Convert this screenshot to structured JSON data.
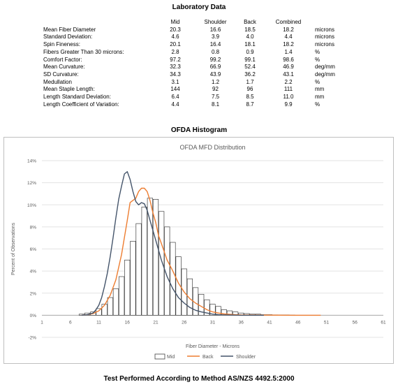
{
  "lab": {
    "title": "Laboratory Data",
    "columns": [
      "Mid",
      "Shoulder",
      "Back",
      "Combined"
    ],
    "rows": [
      {
        "label": "Mean Fiber Diameter",
        "values": [
          "20.3",
          "16.6",
          "18.5",
          "18.2"
        ],
        "unit": "microns"
      },
      {
        "label": "Standard Deviation:",
        "values": [
          "4.6",
          "3.9",
          "4.0",
          "4.4"
        ],
        "unit": "microns"
      },
      {
        "label": "Spin Fineness:",
        "values": [
          "20.1",
          "16.4",
          "18.1",
          "18.2"
        ],
        "unit": "microns"
      },
      {
        "label": "Fibers Greater Than 30 microns:",
        "values": [
          "2.8",
          "0.8",
          "0.9",
          "1.4"
        ],
        "unit": "%"
      },
      {
        "label": "Comfort Factor:",
        "values": [
          "97.2",
          "99.2",
          "99.1",
          "98.6"
        ],
        "unit": "%"
      },
      {
        "label": "Mean Curvature:",
        "values": [
          "32.3",
          "66.9",
          "52.4",
          "46.9"
        ],
        "unit": "deg/mm"
      },
      {
        "label": "SD Curvature:",
        "values": [
          "34.3",
          "43.9",
          "36.2",
          "43.1"
        ],
        "unit": "deg/mm"
      },
      {
        "label": "Medullation",
        "values": [
          "3.1",
          "1.2",
          "1.7",
          "2.2"
        ],
        "unit": "%"
      },
      {
        "label": "Mean Staple Length:",
        "values": [
          "144",
          "92",
          "96",
          "111"
        ],
        "unit": "mm"
      },
      {
        "label": "Length Standard Deviation:",
        "values": [
          "6.4",
          "7.5",
          "8.5",
          "11.0"
        ],
        "unit": "mm"
      },
      {
        "label": "Length Coefficient of Variation:",
        "values": [
          "4.4",
          "8.1",
          "8.7",
          "9.9"
        ],
        "unit": "%"
      }
    ]
  },
  "histogram_title": "OFDA Histogram",
  "footer": "Test Performed According to Method AS/NZS 4492.5:2000",
  "chart_data": {
    "type": "bar",
    "title": "OFDA MFD Distribution",
    "xlabel": "Fiber Diameter - Microns",
    "ylabel": "Percent of Observations",
    "xlim": [
      1,
      61
    ],
    "ylim": [
      -2,
      14
    ],
    "x_ticks": [
      "1",
      "6",
      "11",
      "16",
      "21",
      "26",
      "31",
      "36",
      "41",
      "46",
      "51",
      "56",
      "61"
    ],
    "y_ticks": [
      "-2%",
      "0%",
      "2%",
      "4%",
      "6%",
      "8%",
      "10%",
      "12%",
      "14%"
    ],
    "grid": true,
    "legend_position": "bottom",
    "bar_series": {
      "name": "Mid",
      "x": [
        8,
        9,
        10,
        11,
        12,
        13,
        14,
        15,
        16,
        17,
        18,
        19,
        20,
        21,
        22,
        23,
        24,
        25,
        26,
        27,
        28,
        29,
        30,
        31,
        32,
        33,
        34,
        35,
        36,
        37,
        38,
        39,
        40,
        41,
        42,
        43,
        44,
        45
      ],
      "values": [
        0.1,
        0.2,
        0.3,
        0.6,
        1.0,
        1.6,
        2.4,
        3.5,
        5.0,
        6.7,
        8.3,
        9.8,
        10.6,
        10.5,
        9.4,
        8.0,
        6.6,
        5.3,
        4.2,
        3.3,
        2.5,
        1.9,
        1.4,
        1.0,
        0.8,
        0.5,
        0.4,
        0.3,
        0.2,
        0.15,
        0.1,
        0.1,
        0.05,
        0.05,
        0.03,
        0.02,
        0.02,
        0.01
      ]
    },
    "series": [
      {
        "name": "Back",
        "color": "#ED7D31",
        "x": [
          8,
          9,
          10,
          11,
          12,
          13,
          14,
          15,
          16,
          16.5,
          17,
          17.5,
          18,
          18.5,
          19,
          19.5,
          20,
          20.5,
          21,
          21.5,
          22,
          23,
          24,
          25,
          26,
          27,
          28,
          29,
          30,
          31,
          32,
          33,
          34,
          35,
          36,
          38,
          40,
          45,
          50
        ],
        "values": [
          0.0,
          0.05,
          0.15,
          0.4,
          0.9,
          1.8,
          3.2,
          5.5,
          8.6,
          10.2,
          10.4,
          10.6,
          11.2,
          11.5,
          11.5,
          11.2,
          10.4,
          9.3,
          8.4,
          7.2,
          6.5,
          5.0,
          4.0,
          2.9,
          2.1,
          1.5,
          1.1,
          0.8,
          0.5,
          0.3,
          0.2,
          0.12,
          0.08,
          0.05,
          0.03,
          0.02,
          0.01,
          0.0,
          0.0
        ]
      },
      {
        "name": "Shoulder",
        "color": "#44546A",
        "x": [
          8,
          9,
          10,
          10.5,
          11,
          11.5,
          12,
          12.5,
          13,
          13.5,
          14,
          14.5,
          15,
          15.5,
          16,
          16.5,
          17,
          17.5,
          18,
          18.5,
          19,
          19.5,
          20,
          21,
          22,
          23,
          24,
          25,
          26,
          27,
          28,
          29,
          30,
          31,
          32,
          33,
          34,
          36,
          40
        ],
        "values": [
          0.0,
          0.05,
          0.2,
          0.5,
          0.9,
          1.6,
          2.6,
          3.8,
          5.3,
          7.0,
          8.8,
          10.5,
          11.7,
          12.8,
          13.0,
          12.3,
          11.2,
          10.3,
          10.0,
          10.2,
          10.1,
          9.5,
          8.6,
          6.8,
          5.0,
          3.5,
          2.4,
          1.6,
          1.1,
          0.7,
          0.45,
          0.3,
          0.2,
          0.1,
          0.05,
          0.03,
          0.02,
          0.0,
          0.0
        ]
      }
    ]
  }
}
